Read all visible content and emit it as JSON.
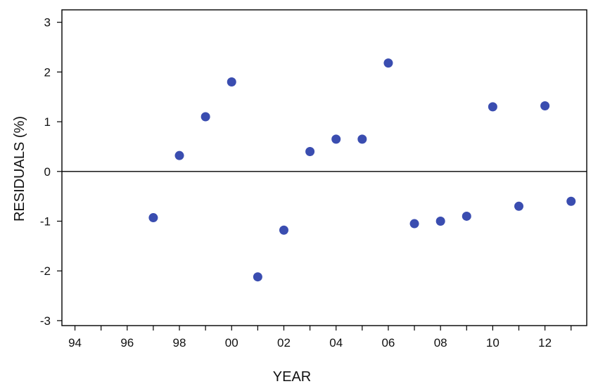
{
  "chart_data": {
    "type": "scatter",
    "title": "",
    "xlabel": "YEAR",
    "ylabel": "RESIDUALS  (%)",
    "xlim": [
      1993.5,
      2013.6
    ],
    "ylim": [
      -3.1,
      3.25
    ],
    "x_ticks": [
      1994,
      1995,
      1996,
      1997,
      1998,
      1999,
      2000,
      2001,
      2002,
      2003,
      2004,
      2005,
      2006,
      2007,
      2008,
      2009,
      2010,
      2011,
      2012,
      2013
    ],
    "x_tick_labels": [
      {
        "x": 1994,
        "label": "94"
      },
      {
        "x": 1996,
        "label": "96"
      },
      {
        "x": 1998,
        "label": "98"
      },
      {
        "x": 2000,
        "label": "00"
      },
      {
        "x": 2002,
        "label": "02"
      },
      {
        "x": 2004,
        "label": "04"
      },
      {
        "x": 2006,
        "label": "06"
      },
      {
        "x": 2008,
        "label": "08"
      },
      {
        "x": 2010,
        "label": "10"
      },
      {
        "x": 2012,
        "label": "12"
      }
    ],
    "y_ticks": [
      {
        "y": 3,
        "label": "3"
      },
      {
        "y": 2,
        "label": "2"
      },
      {
        "y": 1,
        "label": "1"
      },
      {
        "y": 0,
        "label": "0"
      },
      {
        "y": -1,
        "label": "-1"
      },
      {
        "y": -2,
        "label": "-2"
      },
      {
        "y": -3,
        "label": "-3"
      }
    ],
    "reference_line_y": 0,
    "marker_color": "#3a4db0",
    "points": [
      {
        "x": 1997,
        "y": -0.93
      },
      {
        "x": 1998,
        "y": 0.32
      },
      {
        "x": 1999,
        "y": 1.1
      },
      {
        "x": 2000,
        "y": 1.8
      },
      {
        "x": 2001,
        "y": -2.12
      },
      {
        "x": 2002,
        "y": -1.18
      },
      {
        "x": 2003,
        "y": 0.4
      },
      {
        "x": 2004,
        "y": 0.65
      },
      {
        "x": 2005,
        "y": 0.65
      },
      {
        "x": 2006,
        "y": 2.18
      },
      {
        "x": 2007,
        "y": -1.05
      },
      {
        "x": 2008,
        "y": -1.0
      },
      {
        "x": 2009,
        "y": -0.9
      },
      {
        "x": 2010,
        "y": 1.3
      },
      {
        "x": 2011,
        "y": -0.7
      },
      {
        "x": 2012,
        "y": 1.32
      },
      {
        "x": 2013,
        "y": -0.6
      }
    ]
  }
}
